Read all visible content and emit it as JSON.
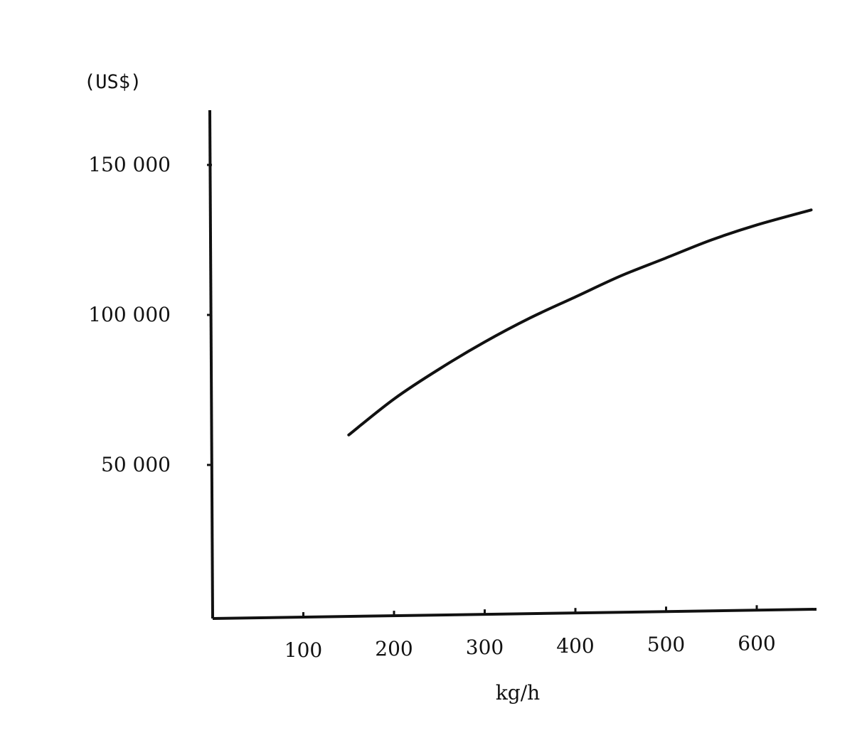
{
  "chart_data": {
    "type": "line",
    "title": "",
    "ylabel": "(US$)",
    "xlabel": "kg/h",
    "xlim": [
      0,
      660
    ],
    "ylim": [
      0,
      170000
    ],
    "x_ticks": [
      100,
      200,
      300,
      400,
      500,
      600
    ],
    "x_tick_labels": [
      "100",
      "200",
      "300",
      "400",
      "500",
      "600"
    ],
    "y_ticks": [
      50000,
      100000,
      150000
    ],
    "y_tick_labels": [
      "50 000",
      "100 000",
      "150 000"
    ],
    "grid": false,
    "legend": "none",
    "series": [
      {
        "x": [
          150,
          200,
          250,
          300,
          350,
          400,
          450,
          500,
          550,
          600,
          660
        ],
        "values": [
          60000,
          72000,
          82000,
          91000,
          99000,
          106000,
          113000,
          119000,
          125000,
          130000,
          135000
        ]
      }
    ]
  }
}
